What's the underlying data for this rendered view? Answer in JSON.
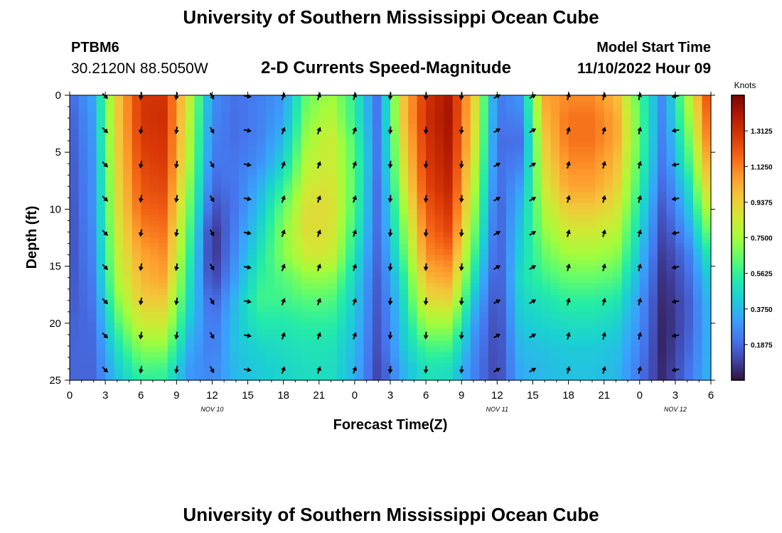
{
  "header": {
    "title": "University of Southern Mississippi Ocean Cube",
    "station": "PTBM6",
    "coordinates": "30.2120N  88.5050W",
    "product": "2-D Currents Speed-Magnitude",
    "model_start_label": "Model Start Time",
    "model_start_value": "11/10/2022 Hour 09"
  },
  "footer": {
    "title": "University of Southern Mississippi Ocean Cube"
  },
  "chart_data": {
    "type": "heatmap",
    "title": "2-D Currents Speed-Magnitude",
    "xlabel": "Forecast Time(Z)",
    "ylabel": "Depth (ft)",
    "x_ticks": [
      "0",
      "3",
      "6",
      "9",
      "12",
      "15",
      "18",
      "21",
      "0",
      "3",
      "6",
      "9",
      "12",
      "15",
      "18",
      "21",
      "0",
      "3",
      "6"
    ],
    "x_range_hours": [
      0,
      54
    ],
    "date_labels": [
      {
        "hour": 12,
        "label": "NOV 10"
      },
      {
        "hour": 36,
        "label": "NOV 11"
      },
      {
        "hour": 51,
        "label": "NOV 12"
      }
    ],
    "y_ticks": [
      "0",
      "5",
      "10",
      "15",
      "20",
      "25"
    ],
    "y_range_ft": [
      0,
      25
    ],
    "colorbar": {
      "label": "Knots",
      "ticks": [
        "1.3125",
        "1.1250",
        "0.9375",
        "0.7500",
        "0.5625",
        "0.3750",
        "0.1875"
      ],
      "range": [
        0.0,
        1.5
      ],
      "colors": [
        "#30123b",
        "#4145ab",
        "#4675ed",
        "#39a2fc",
        "#1bcfd4",
        "#24eca6",
        "#61fc6c",
        "#a4fc3b",
        "#d1e834",
        "#f3c63a",
        "#fe9b2d",
        "#f36315",
        "#d93806",
        "#b11901",
        "#7a0402"
      ]
    },
    "profile_depths_ft": [
      0,
      2,
      4,
      6,
      8,
      10,
      12,
      14,
      16,
      18,
      20,
      22,
      24,
      25
    ],
    "speed_profiles": [
      {
        "hour": 0,
        "knots": [
          0.18,
          0.16,
          0.15,
          0.14,
          0.14,
          0.13,
          0.13,
          0.13,
          0.14,
          0.15,
          0.17,
          0.18,
          0.18,
          0.18
        ]
      },
      {
        "hour": 2,
        "knots": [
          0.33,
          0.31,
          0.3,
          0.29,
          0.28,
          0.28,
          0.27,
          0.26,
          0.24,
          0.22,
          0.2,
          0.19,
          0.18,
          0.18
        ]
      },
      {
        "hour": 4,
        "knots": [
          0.95,
          0.95,
          0.94,
          0.92,
          0.9,
          0.88,
          0.85,
          0.82,
          0.78,
          0.7,
          0.6,
          0.5,
          0.42,
          0.4
        ]
      },
      {
        "hour": 6,
        "knots": [
          1.3,
          1.3,
          1.28,
          1.25,
          1.22,
          1.18,
          1.12,
          1.05,
          1.0,
          0.95,
          0.85,
          0.72,
          0.6,
          0.55
        ]
      },
      {
        "hour": 8,
        "knots": [
          1.3,
          1.32,
          1.3,
          1.28,
          1.25,
          1.2,
          1.15,
          1.1,
          1.05,
          0.95,
          0.85,
          0.72,
          0.58,
          0.55
        ]
      },
      {
        "hour": 10,
        "knots": [
          0.85,
          0.82,
          0.8,
          0.78,
          0.72,
          0.68,
          0.62,
          0.58,
          0.52,
          0.48,
          0.42,
          0.35,
          0.3,
          0.3
        ]
      },
      {
        "hour": 12,
        "knots": [
          0.28,
          0.26,
          0.24,
          0.22,
          0.18,
          0.12,
          0.05,
          0.05,
          0.08,
          0.15,
          0.2,
          0.22,
          0.25,
          0.25
        ]
      },
      {
        "hour": 14,
        "knots": [
          0.2,
          0.2,
          0.2,
          0.22,
          0.22,
          0.22,
          0.25,
          0.28,
          0.32,
          0.38,
          0.4,
          0.4,
          0.38,
          0.38
        ]
      },
      {
        "hour": 16,
        "knots": [
          0.24,
          0.24,
          0.25,
          0.28,
          0.35,
          0.4,
          0.45,
          0.5,
          0.55,
          0.58,
          0.52,
          0.45,
          0.42,
          0.42
        ]
      },
      {
        "hour": 18,
        "knots": [
          0.3,
          0.32,
          0.38,
          0.45,
          0.55,
          0.65,
          0.7,
          0.7,
          0.62,
          0.58,
          0.52,
          0.48,
          0.45,
          0.45
        ]
      },
      {
        "hour": 20,
        "knots": [
          0.65,
          0.7,
          0.75,
          0.8,
          0.85,
          0.9,
          0.9,
          0.85,
          0.72,
          0.62,
          0.55,
          0.5,
          0.48,
          0.48
        ]
      },
      {
        "hour": 22,
        "knots": [
          0.75,
          0.8,
          0.85,
          0.85,
          0.88,
          0.9,
          0.88,
          0.85,
          0.72,
          0.62,
          0.55,
          0.5,
          0.48,
          0.48
        ]
      },
      {
        "hour": 24,
        "knots": [
          0.55,
          0.55,
          0.6,
          0.62,
          0.62,
          0.6,
          0.55,
          0.5,
          0.45,
          0.42,
          0.4,
          0.38,
          0.36,
          0.36
        ]
      },
      {
        "hour": 26,
        "knots": [
          0.2,
          0.2,
          0.2,
          0.2,
          0.18,
          0.18,
          0.18,
          0.17,
          0.15,
          0.14,
          0.13,
          0.12,
          0.1,
          0.1
        ]
      },
      {
        "hour": 28,
        "knots": [
          0.95,
          0.95,
          0.9,
          0.85,
          0.8,
          0.72,
          0.65,
          0.58,
          0.5,
          0.45,
          0.42,
          0.4,
          0.35,
          0.35
        ]
      },
      {
        "hour": 30,
        "knots": [
          1.3,
          1.32,
          1.3,
          1.28,
          1.25,
          1.2,
          1.15,
          1.1,
          1.0,
          0.9,
          0.75,
          0.6,
          0.5,
          0.5
        ]
      },
      {
        "hour": 32,
        "knots": [
          1.4,
          1.42,
          1.4,
          1.38,
          1.35,
          1.3,
          1.25,
          1.15,
          1.05,
          0.92,
          0.75,
          0.6,
          0.48,
          0.48
        ]
      },
      {
        "hour": 34,
        "knots": [
          0.95,
          0.92,
          0.9,
          0.85,
          0.8,
          0.75,
          0.68,
          0.6,
          0.5,
          0.4,
          0.32,
          0.28,
          0.25,
          0.25
        ]
      },
      {
        "hour": 36,
        "knots": [
          0.22,
          0.22,
          0.2,
          0.2,
          0.18,
          0.15,
          0.14,
          0.13,
          0.12,
          0.11,
          0.1,
          0.1,
          0.1,
          0.1
        ]
      },
      {
        "hour": 38,
        "knots": [
          0.3,
          0.25,
          0.2,
          0.25,
          0.32,
          0.38,
          0.42,
          0.45,
          0.48,
          0.45,
          0.42,
          0.38,
          0.35,
          0.35
        ]
      },
      {
        "hour": 40,
        "knots": [
          1.05,
          1.0,
          0.95,
          0.9,
          0.85,
          0.78,
          0.72,
          0.65,
          0.58,
          0.5,
          0.45,
          0.4,
          0.38,
          0.38
        ]
      },
      {
        "hour": 42,
        "knots": [
          1.1,
          1.15,
          1.15,
          1.1,
          1.05,
          0.95,
          0.85,
          0.75,
          0.65,
          0.55,
          0.48,
          0.42,
          0.4,
          0.4
        ]
      },
      {
        "hour": 44,
        "knots": [
          1.1,
          1.15,
          1.15,
          1.1,
          1.05,
          0.95,
          0.85,
          0.75,
          0.65,
          0.55,
          0.48,
          0.42,
          0.4,
          0.4
        ]
      },
      {
        "hour": 46,
        "knots": [
          1.0,
          1.05,
          1.05,
          1.0,
          0.95,
          0.88,
          0.8,
          0.72,
          0.62,
          0.52,
          0.45,
          0.4,
          0.38,
          0.38
        ]
      },
      {
        "hour": 48,
        "knots": [
          0.6,
          0.62,
          0.62,
          0.6,
          0.55,
          0.5,
          0.45,
          0.4,
          0.35,
          0.3,
          0.28,
          0.25,
          0.22,
          0.22
        ]
      },
      {
        "hour": 50,
        "knots": [
          0.25,
          0.24,
          0.22,
          0.2,
          0.17,
          0.13,
          0.1,
          0.07,
          0.05,
          0.04,
          0.03,
          0.03,
          0.04,
          0.04
        ]
      },
      {
        "hour": 52,
        "knots": [
          0.75,
          0.7,
          0.62,
          0.55,
          0.45,
          0.38,
          0.3,
          0.22,
          0.18,
          0.15,
          0.15,
          0.17,
          0.2,
          0.2
        ]
      },
      {
        "hour": 54,
        "knots": [
          1.3,
          1.25,
          1.2,
          1.1,
          1.0,
          0.85,
          0.7,
          0.55,
          0.45,
          0.4,
          0.38,
          0.38,
          0.38,
          0.38
        ]
      }
    ],
    "vector_depths_ft": [
      0,
      3,
      6,
      9,
      12,
      15,
      18,
      21,
      24
    ],
    "vector_direction_periods": [
      {
        "from_hour": 0,
        "to_hour": 4,
        "direction": "SE",
        "angle_deg": 135
      },
      {
        "from_hour": 4,
        "to_hour": 11,
        "direction": "S",
        "angle_deg": 190
      },
      {
        "from_hour": 11,
        "to_hour": 14,
        "direction": "SE",
        "angle_deg": 150
      },
      {
        "from_hour": 14,
        "to_hour": 17,
        "direction": "E",
        "angle_deg": 100
      },
      {
        "from_hour": 17,
        "to_hour": 27,
        "direction": "N",
        "angle_deg": 20
      },
      {
        "from_hour": 27,
        "to_hour": 35,
        "direction": "S",
        "angle_deg": 185
      },
      {
        "from_hour": 35,
        "to_hour": 40,
        "direction": "NE",
        "angle_deg": 60
      },
      {
        "from_hour": 40,
        "to_hour": 50,
        "direction": "N",
        "angle_deg": 15
      },
      {
        "from_hour": 50,
        "to_hour": 54,
        "direction": "W",
        "angle_deg": 260
      }
    ]
  }
}
